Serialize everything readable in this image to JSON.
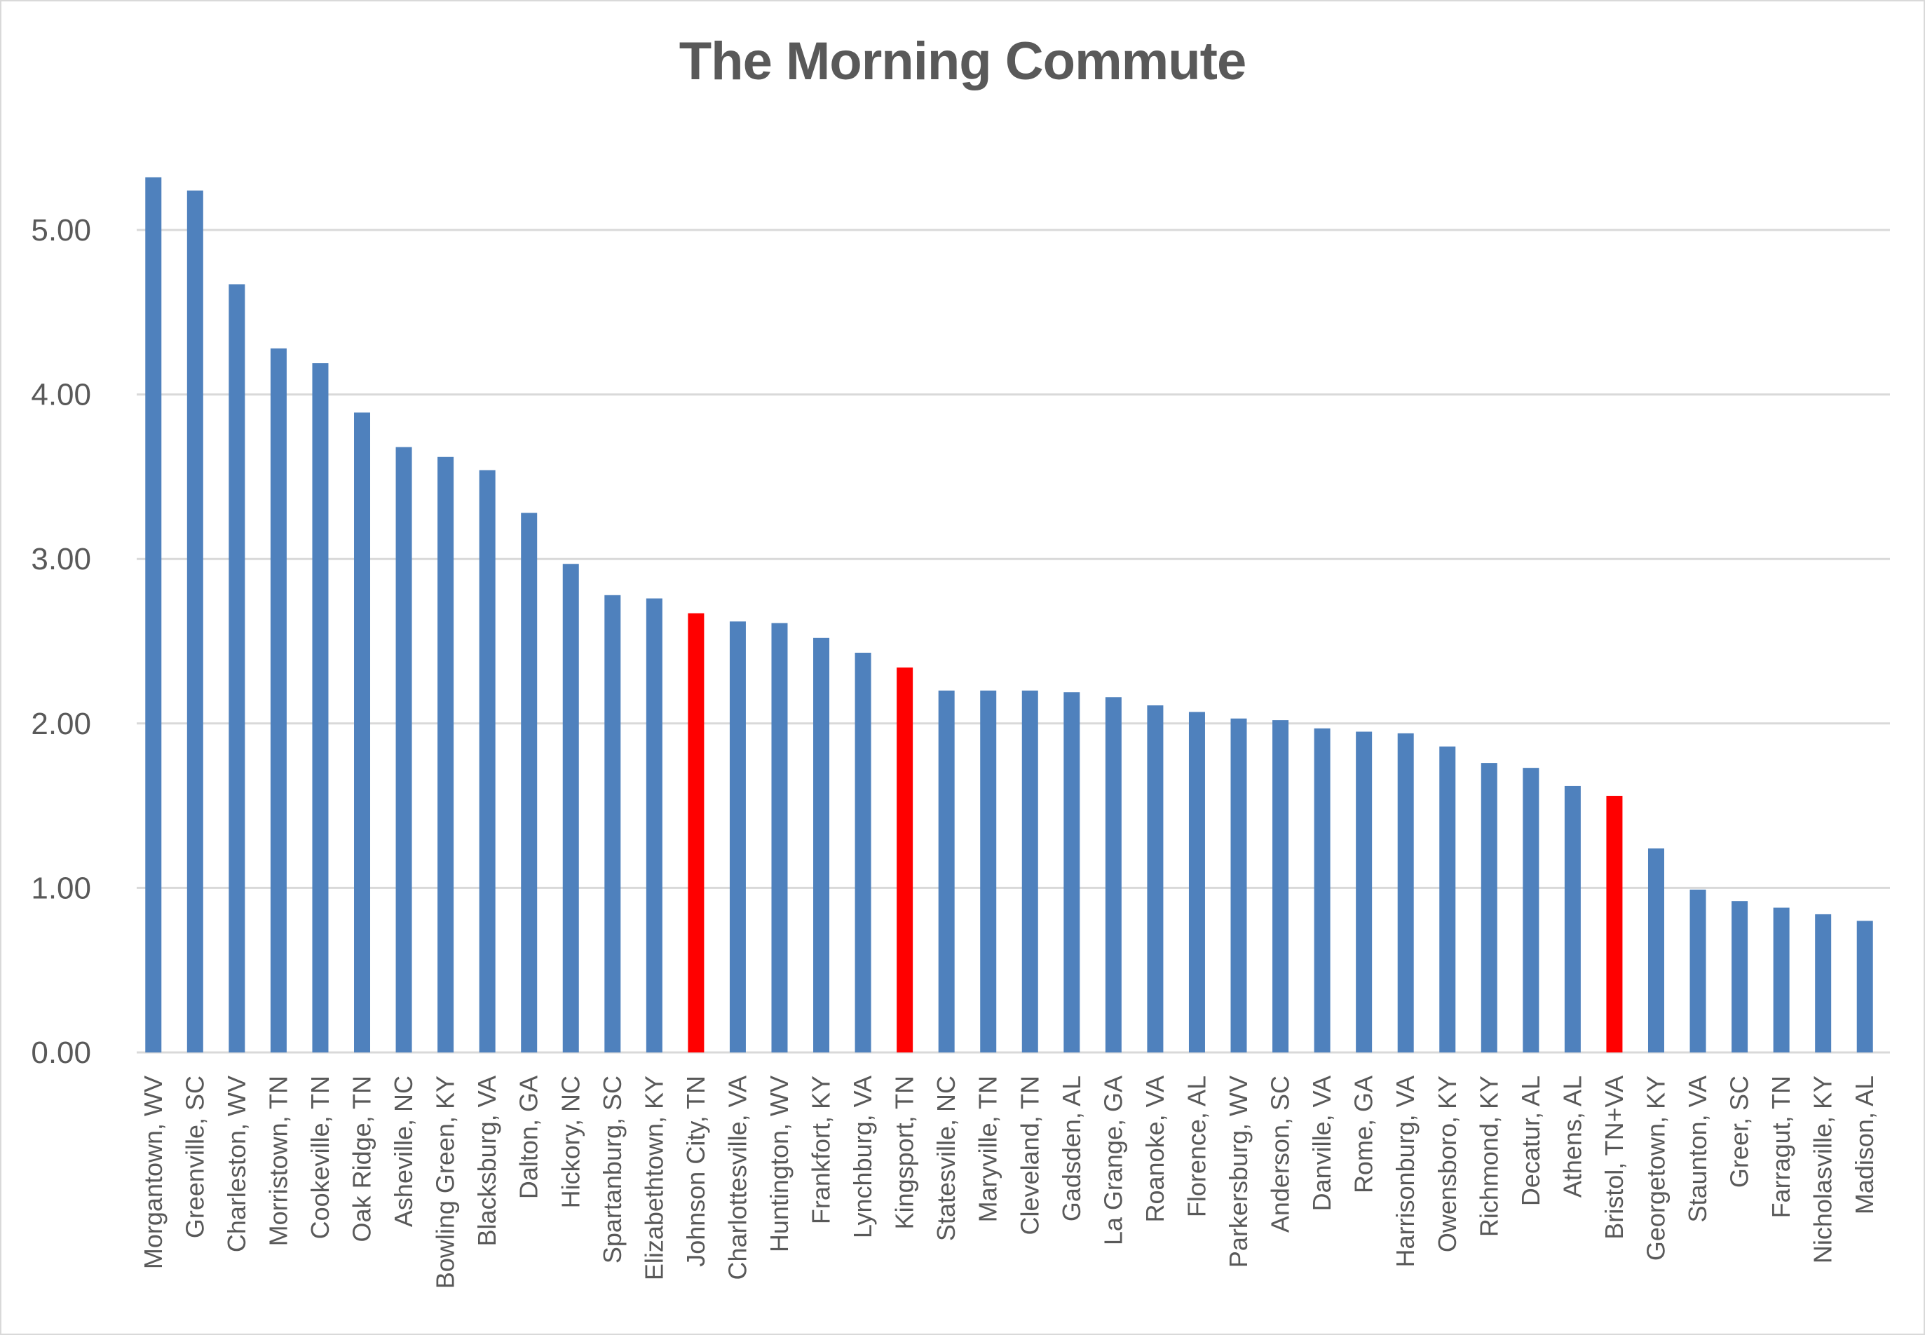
{
  "chart_data": {
    "type": "bar",
    "title": "The Morning Commute",
    "xlabel": "",
    "ylabel": "",
    "ylim": [
      0,
      5.3
    ],
    "yticks": [
      "0.00",
      "1.00",
      "2.00",
      "3.00",
      "4.00",
      "5.00"
    ],
    "grid": true,
    "legend": null,
    "colors": {
      "default": "#4F81BD",
      "highlight": "#FF0000",
      "grid": "#D9D9D9",
      "text": "#595959"
    },
    "categories": [
      "Morgantown, WV",
      "Greenville, SC",
      "Charleston, WV",
      "Morristown, TN",
      "Cookeville, TN",
      "Oak Ridge, TN",
      "Asheville, NC",
      "Bowling Green, KY",
      "Blacksburg, VA",
      "Dalton, GA",
      "Hickory, NC",
      "Spartanburg, SC",
      "Elizabethtown, KY",
      "Johnson City, TN",
      "Charlottesville, VA",
      "Huntington, WV",
      "Frankfort, KY",
      "Lynchburg, VA",
      "Kingsport, TN",
      "Statesville, NC",
      "Maryville, TN",
      "Cleveland, TN",
      "Gadsden, AL",
      "La Grange, GA",
      "Roanoke, VA",
      "Florence, AL",
      "Parkersburg, WV",
      "Anderson, SC",
      "Danville, VA",
      "Rome, GA",
      "Harrisonburg, VA",
      "Owensboro, KY",
      "Richmond, KY",
      "Decatur, AL",
      "Athens, AL",
      "Bristol, TN+VA",
      "Georgetown, KY",
      "Staunton, VA",
      "Greer, SC",
      "Farragut, TN",
      "Nicholasville, KY",
      "Madison, AL"
    ],
    "values": [
      5.32,
      5.24,
      4.67,
      4.28,
      4.19,
      3.89,
      3.68,
      3.62,
      3.54,
      3.28,
      2.97,
      2.78,
      2.76,
      2.67,
      2.62,
      2.61,
      2.52,
      2.43,
      2.34,
      2.2,
      2.2,
      2.2,
      2.19,
      2.16,
      2.11,
      2.07,
      2.03,
      2.02,
      1.97,
      1.95,
      1.94,
      1.86,
      1.76,
      1.73,
      1.62,
      1.56,
      1.24,
      0.99,
      0.92,
      0.88,
      0.84,
      0.8
    ],
    "highlighted": [
      "Johnson City, TN",
      "Kingsport, TN",
      "Bristol, TN+VA"
    ]
  }
}
